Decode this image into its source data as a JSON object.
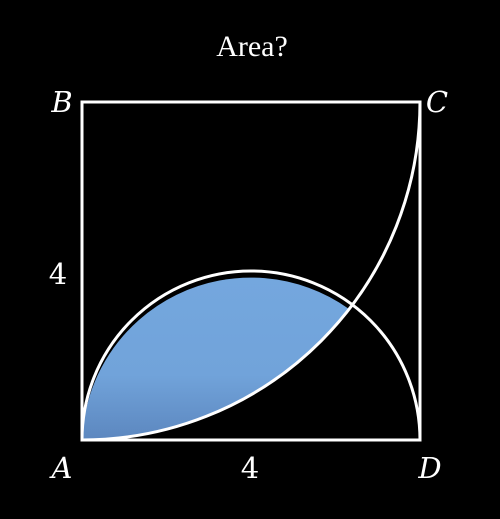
{
  "title": "Area?",
  "vertices": {
    "A": "A",
    "B": "B",
    "C": "C",
    "D": "D"
  },
  "dimensions": {
    "side_left": "4",
    "side_bottom": "4"
  },
  "colors": {
    "background": "#000000",
    "stroke": "#ffffff",
    "fill_top": "#74a7de",
    "fill_bottom": "#5c87bf"
  }
}
